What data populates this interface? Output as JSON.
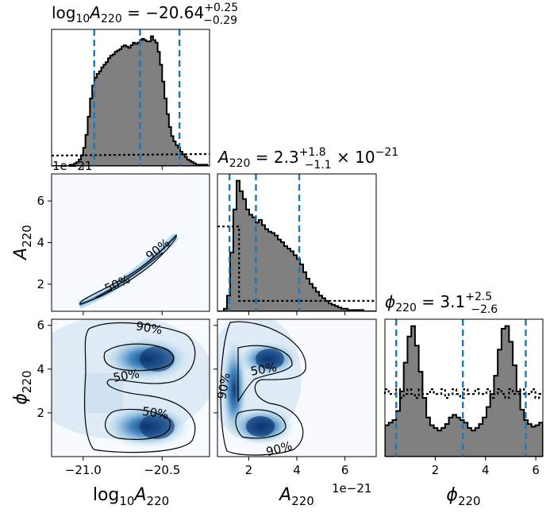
{
  "chart_data": {
    "type": "corner",
    "parameters": [
      {
        "key": "logA",
        "range": [
          -21.2,
          -20.2
        ],
        "ticks": [
          -21.0,
          -20.5
        ],
        "tick_labels": [
          "−21.0",
          "−20.5"
        ],
        "label_text": "log",
        "label_sub": "10",
        "label_sym": "A",
        "label_sym_sub": "220"
      },
      {
        "key": "A",
        "range": [
          0.7,
          7.3
        ],
        "ticks": [
          2,
          4,
          6
        ],
        "tick_labels": [
          "2",
          "4",
          "6"
        ],
        "label_sym": "A",
        "label_sym_sub": "220",
        "scale": "1e−21"
      },
      {
        "key": "phi",
        "range": [
          0.0,
          6.28
        ],
        "ticks": [
          2,
          4,
          6
        ],
        "tick_labels": [
          "2",
          "4",
          "6"
        ],
        "label_sym": "ϕ",
        "label_sym_sub": "220"
      }
    ],
    "titles": [
      {
        "text": "log10A220 = −20.64",
        "prefix": "log",
        "prefix_sub": "10",
        "sym": "A",
        "sym_sub": "220",
        "eq": " = −20.64",
        "sup": "+0.25",
        "sub": "−0.29"
      },
      {
        "text": "A220 = 2.3 × 10−21",
        "sym": "A",
        "sym_sub": "220",
        "eq": " = 2.3",
        "sup": "+1.8",
        "sub": "−1.1",
        "tail": " × 10",
        "tail_sup": "−21"
      },
      {
        "text": "ϕ220 = 3.1",
        "sym": "ϕ",
        "sym_sub": "220",
        "eq": " = 3.1",
        "sup": "+2.5",
        "sub": "−2.6"
      }
    ],
    "quantile_lines": {
      "logA": [
        -20.93,
        -20.64,
        -20.39
      ],
      "A": [
        1.2,
        2.3,
        4.1
      ],
      "phi": [
        0.45,
        3.1,
        5.6
      ]
    },
    "histograms": {
      "logA": {
        "edges": [
          -21.2,
          -20.2
        ],
        "counts": [
          0,
          0,
          0,
          0,
          0,
          0,
          0,
          0,
          1,
          1,
          2,
          3,
          5,
          8,
          14,
          24,
          38,
          52,
          62,
          68,
          71,
          73,
          76,
          78,
          80,
          83,
          85,
          86,
          88,
          89,
          90,
          92,
          93,
          92,
          91,
          93,
          95,
          94,
          95,
          97,
          98,
          97,
          96,
          96,
          100,
          97,
          95,
          88,
          78,
          65,
          52,
          40,
          30,
          23,
          19,
          16,
          14,
          11,
          9,
          7,
          5,
          4,
          3,
          2,
          1,
          1,
          1,
          1,
          1,
          0
        ],
        "prior_level": 0.08
      },
      "A": {
        "edges": [
          0.7,
          7.3
        ],
        "counts": [
          0,
          0,
          2,
          12,
          45,
          78,
          100,
          92,
          86,
          78,
          74,
          72,
          68,
          70,
          66,
          63,
          61,
          60,
          58,
          55,
          53,
          50,
          48,
          46,
          43,
          40,
          36,
          30,
          25,
          21,
          18,
          15,
          12,
          10,
          8,
          6,
          5,
          4,
          3,
          2,
          2,
          1,
          1,
          1,
          1,
          1,
          0,
          0,
          0,
          0
        ],
        "prior_level": 0.65,
        "prior_drop_at": 1.6,
        "prior_level_after": 0.08
      },
      "phi": {
        "edges": [
          0.0,
          6.28
        ],
        "counts": [
          24,
          26,
          28,
          35,
          50,
          72,
          92,
          100,
          85,
          65,
          45,
          30,
          24,
          22,
          20,
          22,
          25,
          30,
          32,
          30,
          28,
          26,
          22,
          20,
          22,
          25,
          30,
          38,
          48,
          62,
          82,
          98,
          100,
          88,
          70,
          50,
          36,
          28,
          25,
          23,
          24,
          26
        ],
        "prior_level": 0.48
      }
    },
    "contours": {
      "levels": [
        "50%",
        "90%"
      ],
      "A_vs_logA": {
        "labels": [
          "50%",
          "90%"
        ]
      },
      "phi_vs_logA": {
        "labels": [
          "90%",
          "50%",
          "50%"
        ]
      },
      "phi_vs_A": {
        "labels": [
          "90%",
          "50%",
          "90%"
        ]
      }
    },
    "colors": {
      "hist_fill": "#808080",
      "hist_edge": "#000000",
      "quantile": "#1f77b4",
      "density_dark": "#08306b",
      "density_light": "#f7fbff"
    },
    "offset_labels": {
      "A_top_panel": "1e−21",
      "A_bottom_axis": "1e−21"
    }
  }
}
